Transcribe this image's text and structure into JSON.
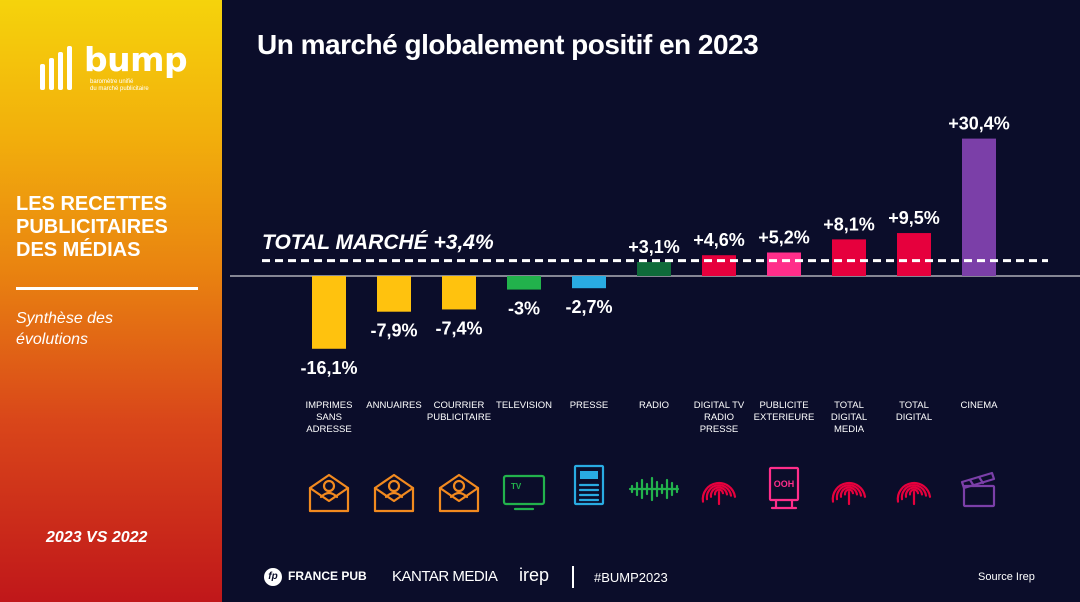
{
  "sidebar": {
    "logo": {
      "word": "bump",
      "tagline_1": "baromètre unifié",
      "tagline_2": "du marché publicitaire"
    },
    "section_title_lines": [
      "LES RECETTES",
      "PUBLICITAIRES",
      "DES MÉDIAS"
    ],
    "subtitle_lines": [
      "Synthèse des",
      "évolutions"
    ],
    "comparison": "2023 VS 2022"
  },
  "header": {
    "title": "Un marché globalement positif en 2023"
  },
  "chart_data": {
    "type": "bar",
    "categories": [
      [
        "IMPRIMES",
        "SANS",
        "ADRESSE"
      ],
      [
        "ANNUAIRES"
      ],
      [
        "COURRIER",
        "PUBLICITAIRE"
      ],
      [
        "TELEVISION"
      ],
      [
        "PRESSE"
      ],
      [
        "RADIO"
      ],
      [
        "DIGITAL TV",
        "RADIO",
        "PRESSE"
      ],
      [
        "PUBLICITE",
        "EXTERIEURE"
      ],
      [
        "TOTAL",
        "DIGITAL",
        "MEDIA"
      ],
      [
        "TOTAL",
        "DIGITAL"
      ],
      [
        "CINEMA"
      ]
    ],
    "values": [
      -16.1,
      -7.9,
      -7.4,
      -3,
      -2.7,
      3.1,
      4.6,
      5.2,
      8.1,
      9.5,
      30.4
    ],
    "value_labels": [
      "-16,1%",
      "-7,9%",
      "-7,4%",
      "-3%",
      "-2,7%",
      "+3,1%",
      "+4,6%",
      "+5,2%",
      "+8,1%",
      "+9,5%",
      "+30,4%"
    ],
    "colors": [
      "#ffc20e",
      "#ffc20e",
      "#ffc20e",
      "#22b24c",
      "#29abe2",
      "#0f6b3a",
      "#e6003d",
      "#ff2e8a",
      "#e6003d",
      "#e6003d",
      "#7b3fa8"
    ],
    "icons": [
      "envelope-person-icon",
      "envelope-person-icon",
      "envelope-person-icon",
      "tv-icon",
      "newspaper-icon",
      "radio-wave-icon",
      "fingerprint-icon",
      "billboard-icon",
      "fingerprint-icon",
      "fingerprint-icon",
      "clapperboard-icon"
    ],
    "icon_colors": [
      "#f28a1f",
      "#f28a1f",
      "#f28a1f",
      "#22b24c",
      "#29abe2",
      "#22b24c",
      "#e6003d",
      "#ff2e8a",
      "#e6003d",
      "#e6003d",
      "#7b3fa8"
    ],
    "reference_line": {
      "value": 3.4,
      "label": "TOTAL MARCHÉ +3,4%",
      "style": "dashed"
    },
    "title": "Un marché globalement positif en 2023",
    "ylim": [
      -18,
      32
    ]
  },
  "footer": {
    "francepub_mark": "fp",
    "francepub": "FRANCE PUB",
    "kantar": "KANTAR MEDIA",
    "irep": "irep",
    "hashtag": "#BUMP2023",
    "source": "Source Irep"
  }
}
